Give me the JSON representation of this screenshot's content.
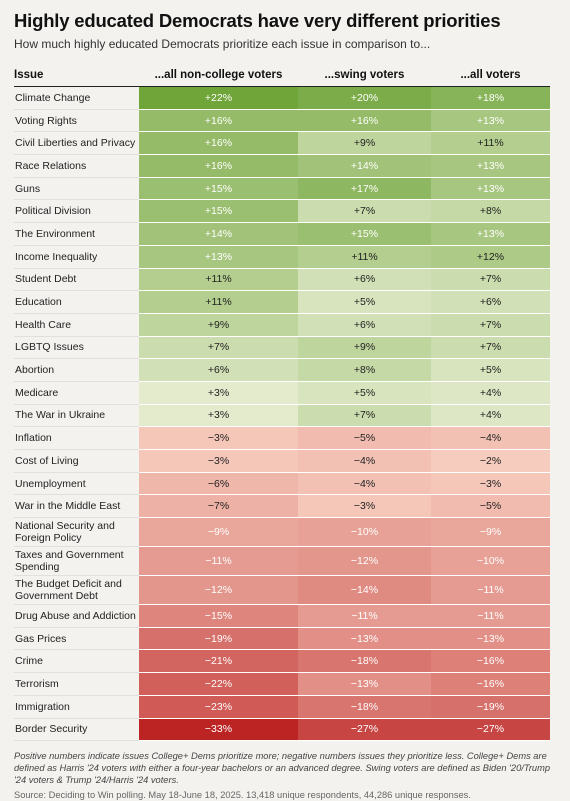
{
  "title": "Highly educated Democrats have very different priorities",
  "subtitle": "How much highly educated Democrats prioritize each issue in comparison to...",
  "note": "Positive numbers indicate issues College+ Dems prioritize more; negative numbers issues they prioritize less. College+ Dems are defined as Harris '24 voters with either a four-year bachelors or an advanced degree. Swing voters are defined as Biden '20/Trump '24 voters & Trump '24/Harris '24 voters.",
  "source": "Source: Deciding to Win polling. May 18-June 18, 2025. 13,418 unique respondents, 44,286 unique responses.",
  "chart_data": {
    "type": "table",
    "columns": [
      "Issue",
      "...all non-college voters",
      "...swing voters",
      "...all voters"
    ],
    "rows": [
      {
        "issue": "Climate Change",
        "values": [
          22,
          20,
          18
        ]
      },
      {
        "issue": "Voting Rights",
        "values": [
          16,
          16,
          13
        ]
      },
      {
        "issue": "Civil Liberties and Privacy",
        "values": [
          16,
          9,
          11
        ]
      },
      {
        "issue": "Race Relations",
        "values": [
          16,
          14,
          13
        ]
      },
      {
        "issue": "Guns",
        "values": [
          15,
          17,
          13
        ]
      },
      {
        "issue": "Political Division",
        "values": [
          15,
          7,
          8
        ]
      },
      {
        "issue": "The Environment",
        "values": [
          14,
          15,
          13
        ]
      },
      {
        "issue": "Income Inequality",
        "values": [
          13,
          11,
          12
        ]
      },
      {
        "issue": "Student Debt",
        "values": [
          11,
          6,
          7
        ]
      },
      {
        "issue": "Education",
        "values": [
          11,
          5,
          6
        ]
      },
      {
        "issue": "Health Care",
        "values": [
          9,
          6,
          7
        ]
      },
      {
        "issue": "LGBTQ Issues",
        "values": [
          7,
          9,
          7
        ]
      },
      {
        "issue": "Abortion",
        "values": [
          6,
          8,
          5
        ]
      },
      {
        "issue": "Medicare",
        "values": [
          3,
          5,
          4
        ]
      },
      {
        "issue": "The War in Ukraine",
        "values": [
          3,
          7,
          4
        ]
      },
      {
        "issue": "Inflation",
        "values": [
          -3,
          -5,
          -4
        ]
      },
      {
        "issue": "Cost of Living",
        "values": [
          -3,
          -4,
          -2
        ]
      },
      {
        "issue": "Unemployment",
        "values": [
          -6,
          -4,
          -3
        ]
      },
      {
        "issue": "War in the Middle East",
        "values": [
          -7,
          -3,
          -5
        ]
      },
      {
        "issue": "National Security and Foreign Policy",
        "values": [
          -9,
          -10,
          -9
        ]
      },
      {
        "issue": "Taxes and Government Spending",
        "values": [
          -11,
          -12,
          -10
        ]
      },
      {
        "issue": "The Budget Deficit and Government Debt",
        "values": [
          -12,
          -14,
          -11
        ]
      },
      {
        "issue": "Drug Abuse and Addiction",
        "values": [
          -15,
          -11,
          -11
        ]
      },
      {
        "issue": "Gas Prices",
        "values": [
          -19,
          -13,
          -13
        ]
      },
      {
        "issue": "Crime",
        "values": [
          -21,
          -18,
          -16
        ]
      },
      {
        "issue": "Terrorism",
        "values": [
          -22,
          -13,
          -16
        ]
      },
      {
        "issue": "Immigration",
        "values": [
          -23,
          -18,
          -19
        ]
      },
      {
        "issue": "Border Security",
        "values": [
          -33,
          -27,
          -27
        ]
      }
    ]
  }
}
